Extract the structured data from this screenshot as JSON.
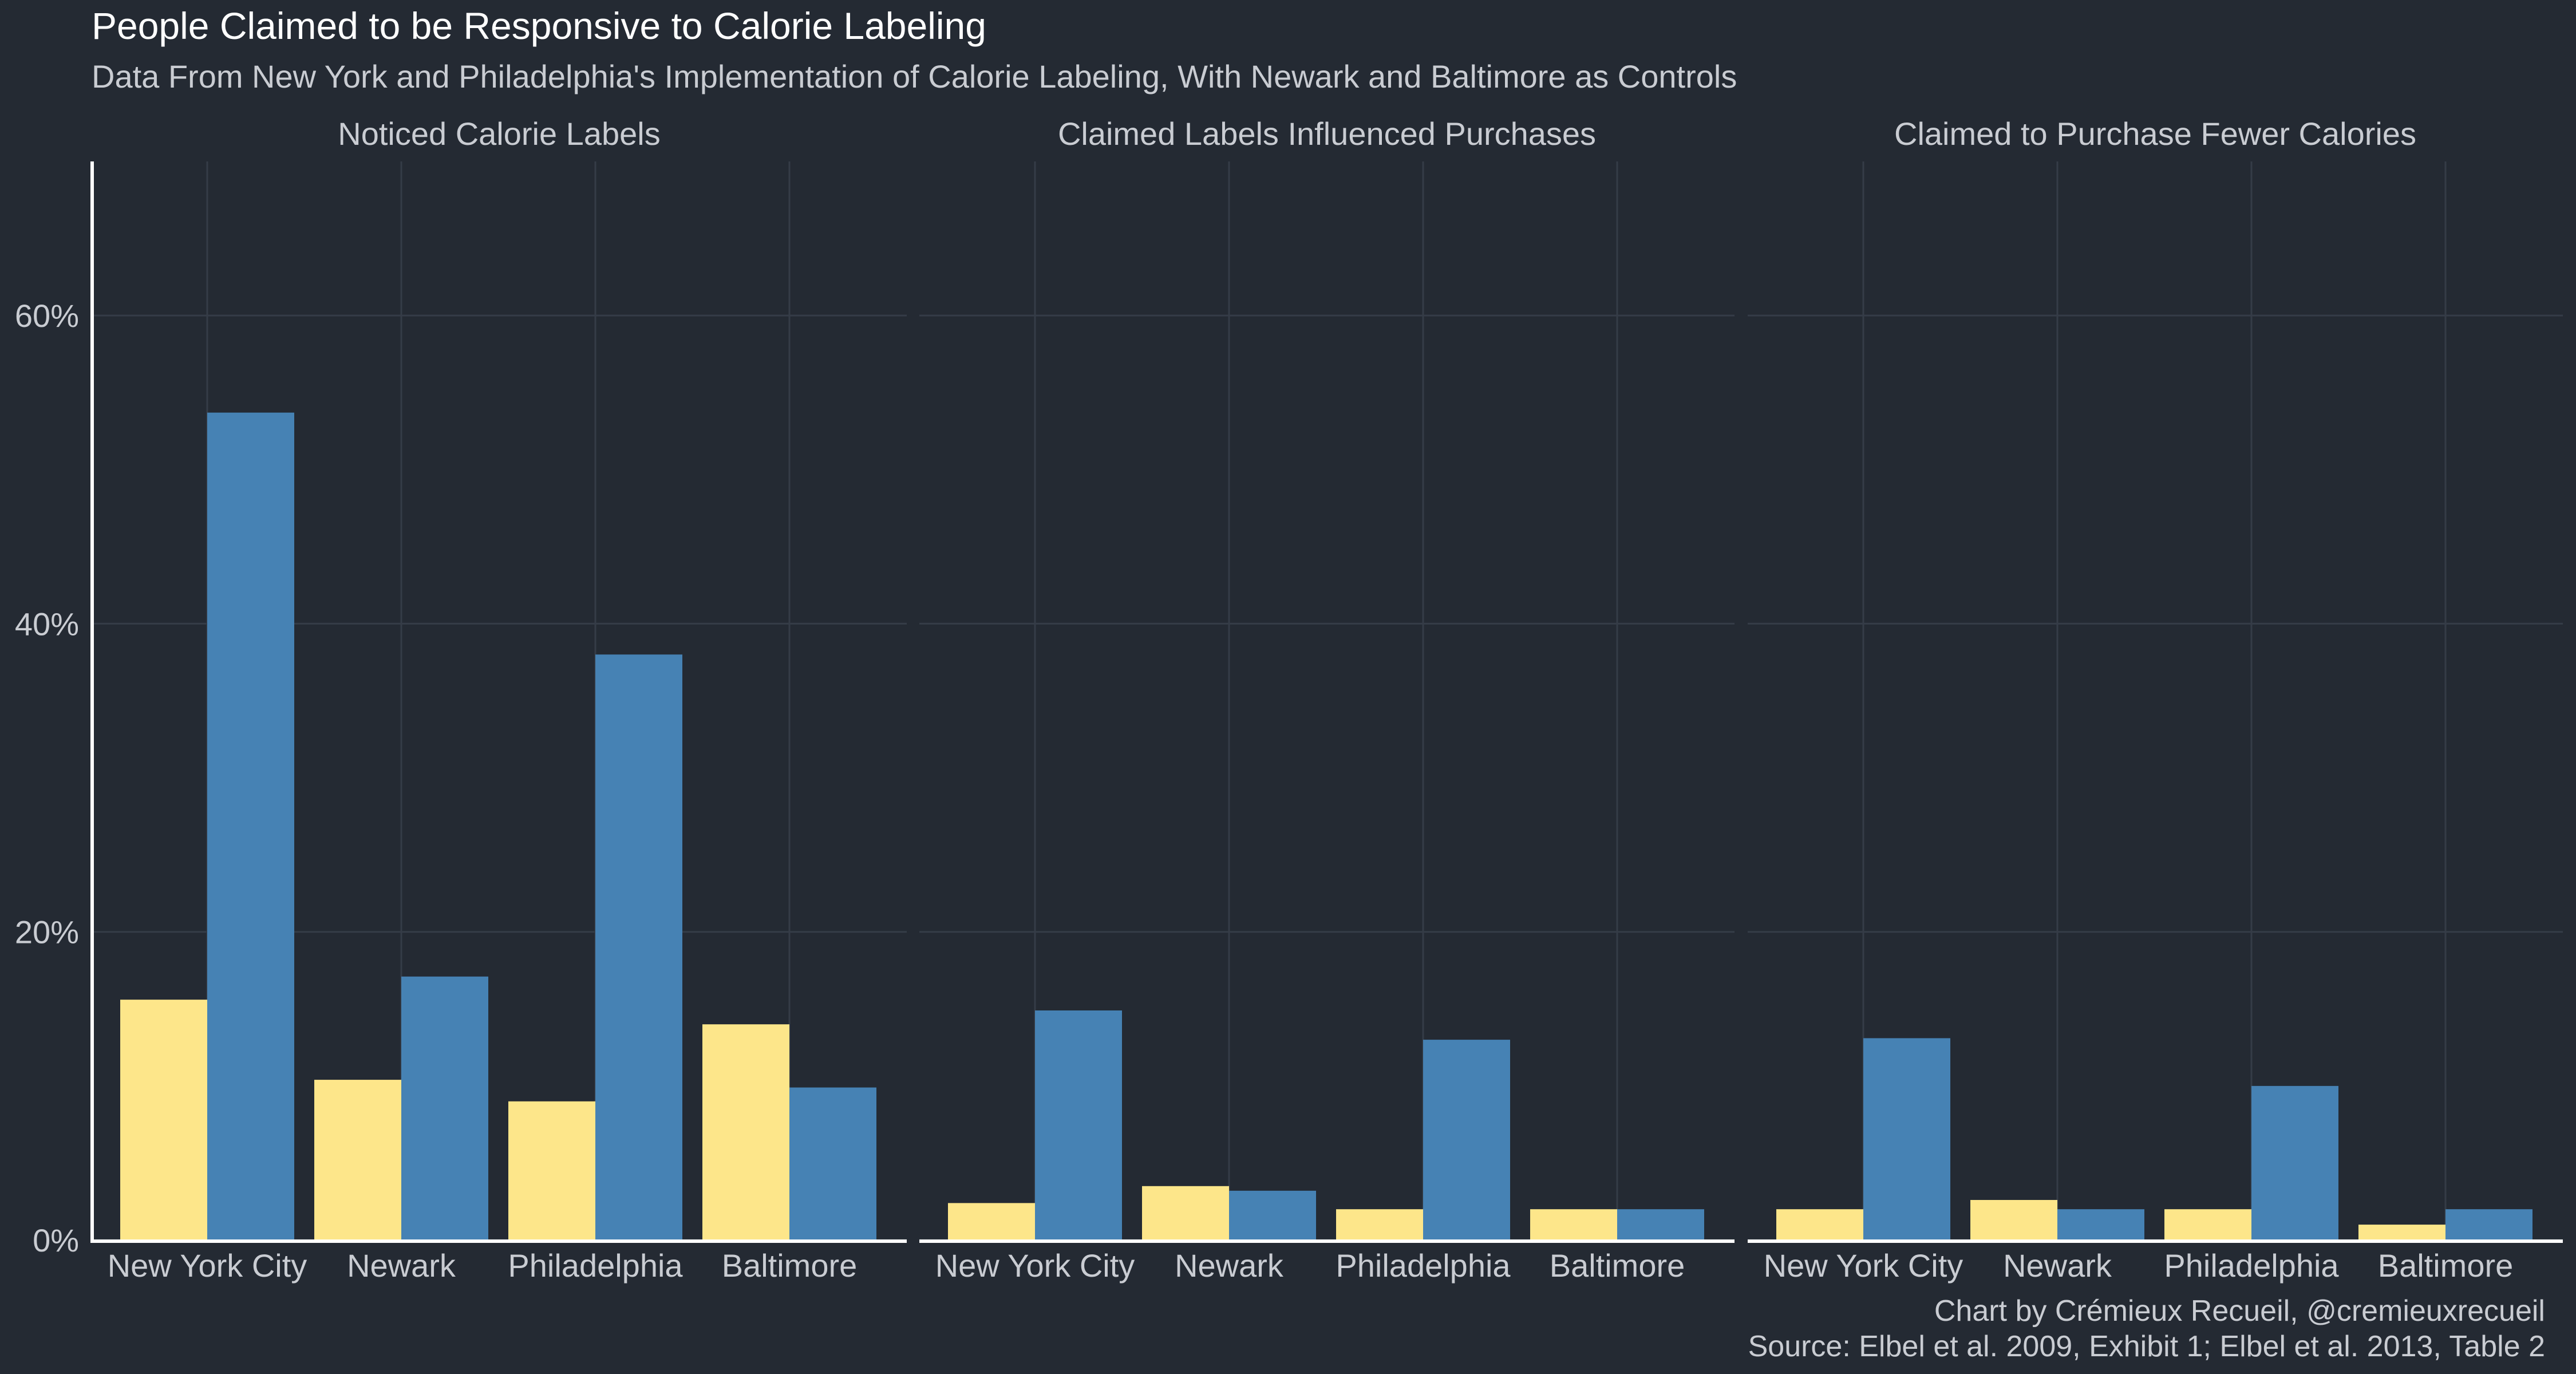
{
  "chart_data": {
    "type": "bar",
    "title": "People Claimed to be Responsive to Calorie Labeling",
    "subtitle": "Data From New York and Philadelphia's Implementation of Calorie Labeling, With Newark and Baltimore as Controls",
    "caption_lines": [
      "Chart by Crémieux Recueil, @cremieuxrecueil",
      "Source: Elbel et al. 2009, Exhibit 1; Elbel et al. 2013, Table 2"
    ],
    "categories": [
      "New York City",
      "Newark",
      "Philadelphia",
      "Baltimore"
    ],
    "y_ticks": [
      "0%",
      "20%",
      "40%",
      "60%"
    ],
    "y_tick_values": [
      0,
      20,
      40,
      60
    ],
    "ylim": [
      0,
      70
    ],
    "grid": true,
    "legend": "none",
    "series_colors": [
      "#fde68a",
      "#4682b4"
    ],
    "panels": [
      {
        "label": "Noticed Calorie Labels",
        "series": [
          {
            "values": [
              15.6,
              10.4,
              9.0,
              14.0
            ]
          },
          {
            "values": [
              53.7,
              17.1,
              38.0,
              9.9
            ]
          }
        ]
      },
      {
        "label": "Claimed Labels Influenced Purchases",
        "series": [
          {
            "values": [
              2.4,
              3.5,
              2.0,
              2.0
            ]
          },
          {
            "values": [
              14.9,
              3.2,
              13.0,
              2.0
            ]
          }
        ]
      },
      {
        "label": "Claimed to Purchase Fewer Calories",
        "series": [
          {
            "values": [
              2.0,
              2.6,
              2.0,
              1.0
            ]
          },
          {
            "values": [
              13.1,
              2.0,
              10.0,
              2.0
            ]
          }
        ]
      }
    ]
  }
}
